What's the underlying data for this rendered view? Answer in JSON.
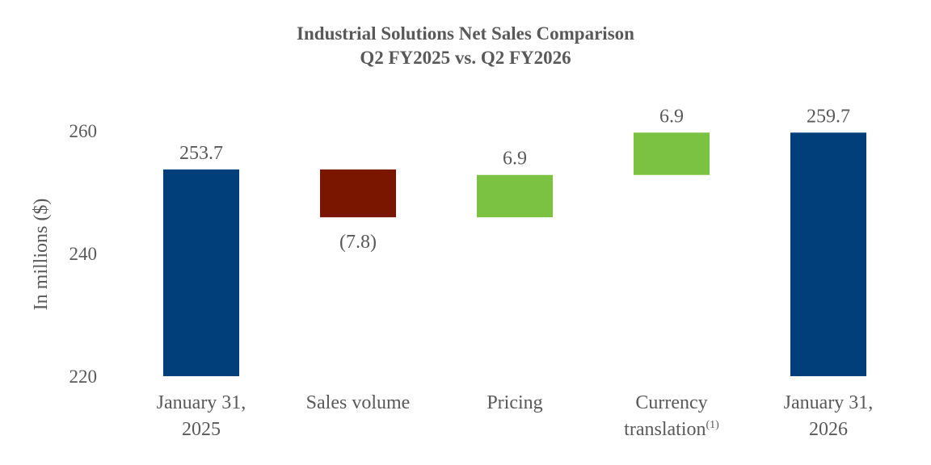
{
  "chart_data": {
    "type": "waterfall",
    "title": [
      "Industrial Solutions Net Sales Comparison",
      "Q2 FY2025 vs. Q2 FY2026"
    ],
    "ylabel": "In millions ($)",
    "xlabel": "",
    "ylim": [
      220,
      260
    ],
    "yticks": [
      220,
      240,
      260
    ],
    "grid": false,
    "legend": "none",
    "categories": [
      {
        "lines": [
          "January 31,",
          "2025"
        ],
        "superscript": ""
      },
      {
        "lines": [
          "Sales volume"
        ],
        "superscript": ""
      },
      {
        "lines": [
          "Pricing"
        ],
        "superscript": ""
      },
      {
        "lines": [
          "Currency",
          "translation"
        ],
        "superscript": "(1)"
      },
      {
        "lines": [
          "January 31,",
          "2026"
        ],
        "superscript": ""
      }
    ],
    "bars": [
      {
        "kind": "total",
        "start": 220,
        "end": 253.7,
        "value": 253.7,
        "label": "253.7",
        "color": "#003F7A",
        "label_position": "above"
      },
      {
        "kind": "decrease",
        "start": 253.7,
        "end": 245.9,
        "value": -7.8,
        "label": "(7.8)",
        "color": "#7A1500",
        "label_position": "below"
      },
      {
        "kind": "increase",
        "start": 245.9,
        "end": 252.8,
        "value": 6.9,
        "label": "6.9",
        "color": "#7CC242",
        "label_position": "above"
      },
      {
        "kind": "increase",
        "start": 252.8,
        "end": 259.7,
        "value": 6.9,
        "label": "6.9",
        "color": "#7CC242",
        "label_position": "above"
      },
      {
        "kind": "total",
        "start": 220,
        "end": 259.7,
        "value": 259.7,
        "label": "259.7",
        "color": "#003F7A",
        "label_position": "above"
      }
    ]
  }
}
